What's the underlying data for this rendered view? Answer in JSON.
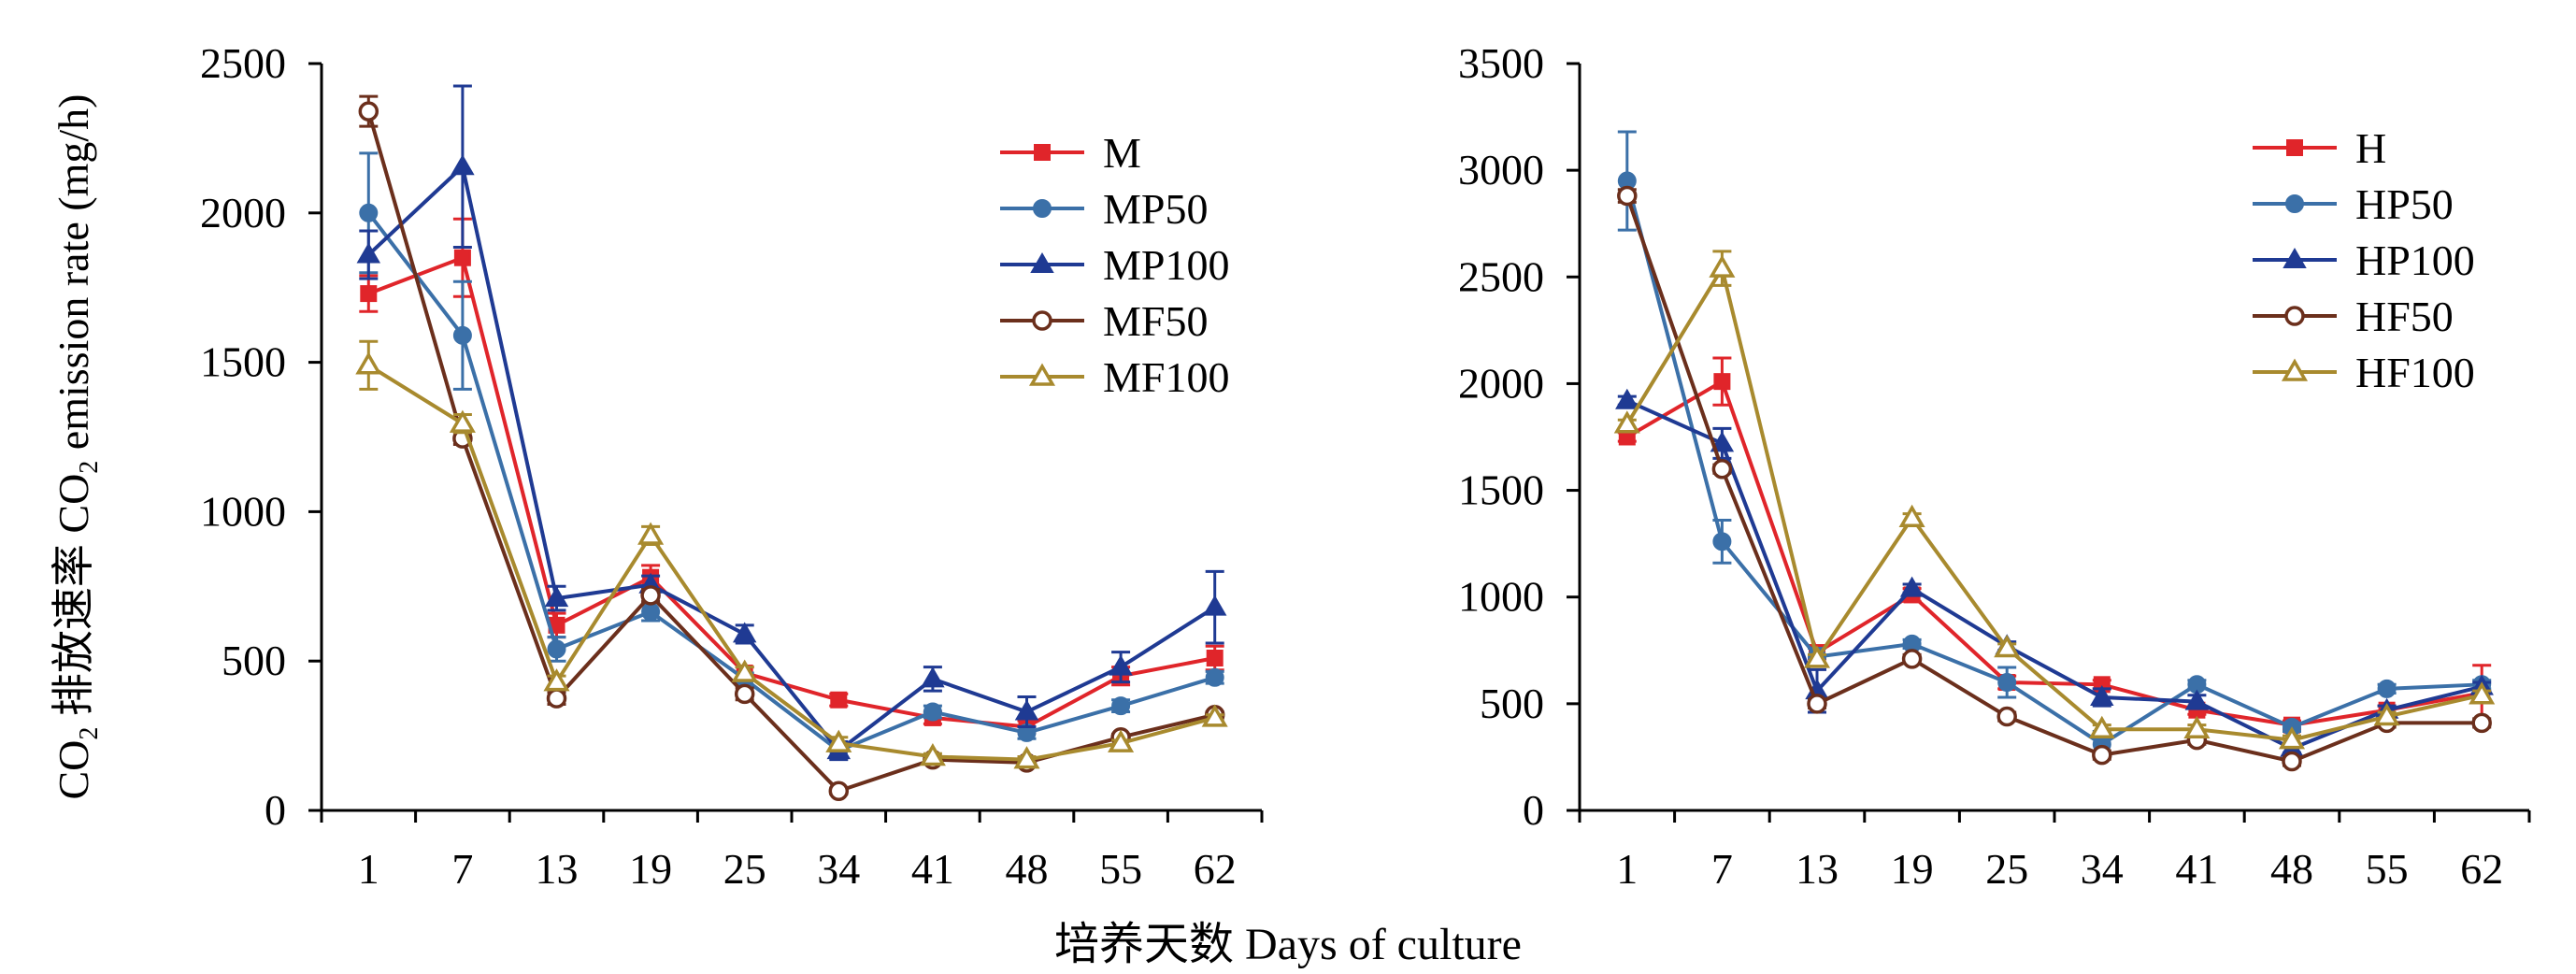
{
  "figure": {
    "xlabel": "培养天数 Days of culture",
    "ylabel_pre": "CO",
    "ylabel_sub1": "2",
    "ylabel_mid": " 排放速率 CO",
    "ylabel_sub2": "2",
    "ylabel_post": " emission rate (mg/h)"
  },
  "chart_data": [
    {
      "type": "line",
      "categories": [
        "1",
        "7",
        "13",
        "19",
        "25",
        "34",
        "41",
        "48",
        "55",
        "62"
      ],
      "ylim": [
        0,
        2500
      ],
      "yticks": [
        0,
        500,
        1000,
        1500,
        2000,
        2500
      ],
      "grid": false,
      "legend_position": "top-right",
      "series": [
        {
          "name": "M",
          "color": "#e0252a",
          "marker": "square",
          "values": [
            1730,
            1850,
            620,
            780,
            460,
            370,
            310,
            280,
            450,
            510
          ],
          "errors": [
            60,
            130,
            40,
            40,
            20,
            20,
            20,
            20,
            30,
            40
          ]
        },
        {
          "name": "MP50",
          "color": "#3b70a8",
          "marker": "circle",
          "values": [
            2000,
            1590,
            540,
            665,
            440,
            200,
            330,
            260,
            350,
            445
          ],
          "errors": [
            200,
            180,
            40,
            30,
            20,
            20,
            20,
            20,
            20,
            20
          ]
        },
        {
          "name": "MP100",
          "color": "#1f3a93",
          "marker": "triangle",
          "values": [
            1860,
            2155,
            710,
            755,
            590,
            200,
            440,
            330,
            480,
            680
          ],
          "errors": [
            80,
            270,
            40,
            30,
            30,
            30,
            40,
            50,
            50,
            120
          ]
        },
        {
          "name": "MF50",
          "color": "#6b2f1c",
          "marker": "circle-open",
          "values": [
            2340,
            1245,
            375,
            720,
            390,
            65,
            170,
            160,
            245,
            320
          ],
          "errors": [
            50,
            20,
            20,
            20,
            20,
            10,
            10,
            10,
            10,
            10
          ]
        },
        {
          "name": "MF100",
          "color": "#a88a2e",
          "marker": "triangle-open",
          "values": [
            1490,
            1295,
            430,
            920,
            460,
            225,
            180,
            170,
            225,
            310
          ],
          "errors": [
            80,
            30,
            20,
            30,
            20,
            20,
            10,
            10,
            10,
            10
          ]
        }
      ]
    },
    {
      "type": "line",
      "categories": [
        "1",
        "7",
        "13",
        "19",
        "25",
        "34",
        "41",
        "48",
        "55",
        "62"
      ],
      "ylim": [
        0,
        3500
      ],
      "yticks": [
        0,
        500,
        1000,
        1500,
        2000,
        2500,
        3000,
        3500
      ],
      "grid": false,
      "legend_position": "top-right",
      "series": [
        {
          "name": "H",
          "color": "#e0252a",
          "marker": "square",
          "values": [
            1750,
            2010,
            740,
            1010,
            600,
            590,
            470,
            400,
            470,
            550
          ],
          "errors": [
            20,
            110,
            30,
            30,
            30,
            20,
            20,
            20,
            20,
            130
          ]
        },
        {
          "name": "HP50",
          "color": "#3b70a8",
          "marker": "circle",
          "values": [
            2950,
            1260,
            720,
            780,
            600,
            310,
            590,
            390,
            570,
            590
          ],
          "errors": [
            230,
            100,
            40,
            20,
            70,
            60,
            20,
            20,
            20,
            20
          ]
        },
        {
          "name": "HP100",
          "color": "#1f3a93",
          "marker": "triangle",
          "values": [
            1920,
            1720,
            560,
            1040,
            770,
            530,
            510,
            290,
            470,
            580
          ],
          "errors": [
            20,
            70,
            100,
            20,
            20,
            40,
            30,
            20,
            20,
            20
          ]
        },
        {
          "name": "HF50",
          "color": "#6b2f1c",
          "marker": "circle-open",
          "values": [
            2880,
            1600,
            500,
            710,
            440,
            260,
            330,
            230,
            410,
            410
          ],
          "errors": [
            30,
            20,
            20,
            20,
            20,
            20,
            20,
            20,
            20,
            20
          ]
        },
        {
          "name": "HF100",
          "color": "#a88a2e",
          "marker": "triangle-open",
          "values": [
            1810,
            2540,
            710,
            1370,
            760,
            380,
            380,
            330,
            440,
            540
          ],
          "errors": [
            20,
            80,
            20,
            20,
            20,
            20,
            20,
            20,
            20,
            20
          ]
        }
      ]
    }
  ]
}
